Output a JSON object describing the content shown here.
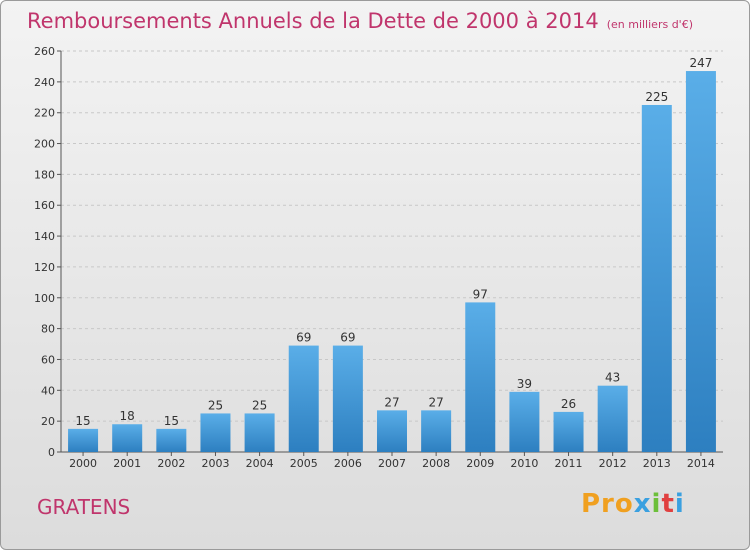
{
  "header": {
    "title": "Remboursements Annuels de la Dette de 2000 à 2014",
    "unit": "(en milliers d'€)"
  },
  "footer": {
    "commune": "GRATENS",
    "logo": [
      "Pro",
      "x",
      "i",
      "t",
      "i"
    ]
  },
  "colors": {
    "title": "#c0356c",
    "bar_top": "#5aaee8",
    "bar_bottom": "#2d7fc0",
    "grid": "#c8c8c8"
  },
  "chart_data": {
    "type": "bar",
    "title": "Remboursements Annuels de la Dette de 2000 à 2014",
    "xlabel": "",
    "ylabel": "",
    "categories": [
      "2000",
      "2001",
      "2002",
      "2003",
      "2004",
      "2005",
      "2006",
      "2007",
      "2008",
      "2009",
      "2010",
      "2011",
      "2012",
      "2013",
      "2014"
    ],
    "values": [
      15,
      18,
      15,
      25,
      25,
      69,
      69,
      27,
      27,
      97,
      39,
      26,
      43,
      225,
      247
    ],
    "ylim": [
      0,
      260
    ],
    "yticks": [
      0,
      20,
      40,
      60,
      80,
      100,
      120,
      140,
      160,
      180,
      200,
      220,
      240,
      260
    ],
    "grid": true,
    "data_labels": true
  }
}
